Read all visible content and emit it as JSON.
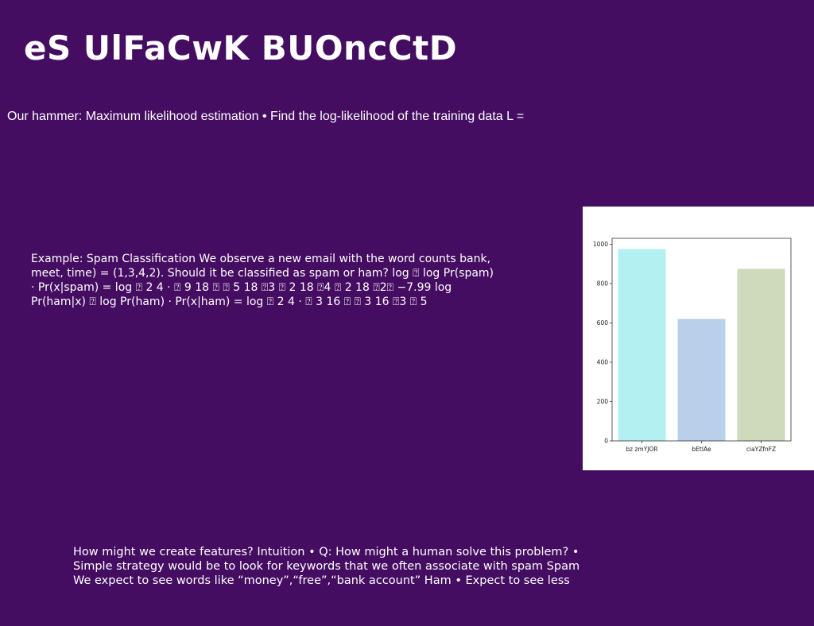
{
  "slide": {
    "title": "eS UlFaCwK BUOncCtD",
    "subtitle": "Our hammer: Maximum likelihood estimation • Find the log-likelihood of the training data L =",
    "example_text": "Example: Spam Classification We observe a new email with the word counts bank, meet, time) = (1,3,4,2). Should it be classified as spam or ham? log ⍰ log Pr(spam) · Pr(x|spam) = log ⍰ 2 4 · ⍰ 9 18 ⍰ ⍰ 5 18 ⍰3 ⍰ 2 18 ⍰4 ⍰ 2 18 ⍰2⍰ −7.99 log Pr(ham|x) ⍰ log Pr(ham) · Pr(x|ham) = log ⍰ 2 4 · ⍰ 3 16 ⍰ ⍰ 3 16 ⍰3 ⍰ 5",
    "features_text": "How might we create features? Intuition • Q: How might a human solve this problem? • Simple strategy would be to look for keywords that we often associate with spam Spam We expect to see words like “money”,“free”,“bank account” Ham • Expect to see less"
  },
  "chart_data": {
    "type": "bar",
    "categories": [
      "bz zmYJOR",
      "bEtlAe",
      "ciaYZfnFZ"
    ],
    "values": [
      975,
      620,
      875
    ],
    "colors": [
      "#b3f0f1",
      "#b9cfea",
      "#cfd9bc"
    ],
    "ylim": [
      0,
      1030
    ],
    "yticks": [
      0,
      200,
      400,
      600,
      800,
      1000
    ],
    "title": "",
    "xlabel": "",
    "ylabel": "",
    "grid": false
  }
}
